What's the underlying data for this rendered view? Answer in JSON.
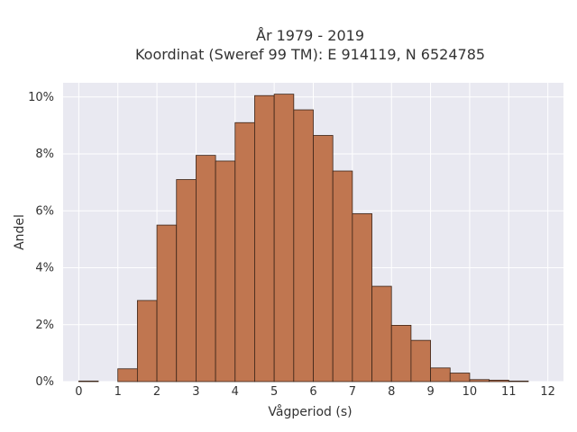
{
  "chart_data": {
    "type": "bar",
    "title_lines": [
      "År 1979 - 2019",
      "Koordinat (Sweref 99 TM): E 914119, N 6524785"
    ],
    "xlabel": "Vågperiod (s)",
    "ylabel": "Andel",
    "xlim": [
      -0.4,
      12.4
    ],
    "ylim": [
      0,
      10.5
    ],
    "x_ticks": [
      0,
      1,
      2,
      3,
      4,
      5,
      6,
      7,
      8,
      9,
      10,
      11,
      12
    ],
    "x_tick_labels": [
      "0",
      "1",
      "2",
      "3",
      "4",
      "5",
      "6",
      "7",
      "8",
      "9",
      "10",
      "11",
      "12"
    ],
    "y_ticks": [
      0,
      2,
      4,
      6,
      8,
      10
    ],
    "y_tick_labels": [
      "0%",
      "2%",
      "4%",
      "6%",
      "8%",
      "10%"
    ],
    "bin_width": 0.5,
    "bins": [
      {
        "start": 0.0,
        "value": 0.02
      },
      {
        "start": 0.5,
        "value": 0.0
      },
      {
        "start": 1.0,
        "value": 0.45
      },
      {
        "start": 1.5,
        "value": 2.85
      },
      {
        "start": 2.0,
        "value": 5.5
      },
      {
        "start": 2.5,
        "value": 7.1
      },
      {
        "start": 3.0,
        "value": 7.95
      },
      {
        "start": 3.5,
        "value": 7.75
      },
      {
        "start": 4.0,
        "value": 9.1
      },
      {
        "start": 4.5,
        "value": 10.05
      },
      {
        "start": 5.0,
        "value": 10.1
      },
      {
        "start": 5.5,
        "value": 9.55
      },
      {
        "start": 6.0,
        "value": 8.65
      },
      {
        "start": 6.5,
        "value": 7.4
      },
      {
        "start": 7.0,
        "value": 5.9
      },
      {
        "start": 7.5,
        "value": 3.35
      },
      {
        "start": 8.0,
        "value": 1.98
      },
      {
        "start": 8.5,
        "value": 1.45
      },
      {
        "start": 9.0,
        "value": 0.48
      },
      {
        "start": 9.5,
        "value": 0.3
      },
      {
        "start": 10.0,
        "value": 0.07
      },
      {
        "start": 10.5,
        "value": 0.05
      },
      {
        "start": 11.0,
        "value": 0.02
      }
    ],
    "grid": true,
    "colors": {
      "bar_fill": "#c07650",
      "bar_edge": "#3a2418",
      "plot_background": "#e9e9f1",
      "grid": "#ffffff"
    }
  }
}
